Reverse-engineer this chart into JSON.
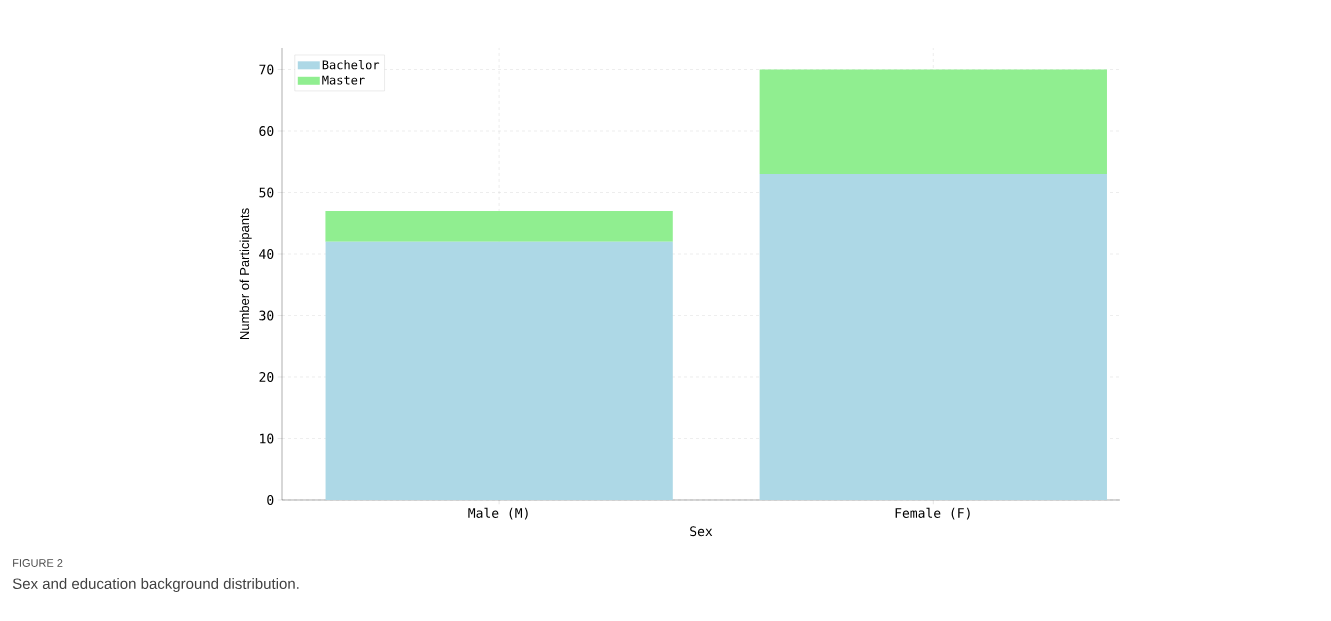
{
  "chart_data": {
    "type": "bar",
    "stacked": true,
    "xlabel": "Sex",
    "ylabel": "Number of Participants",
    "categories": [
      "Male (M)",
      "Female (F)"
    ],
    "series": [
      {
        "name": "Bachelor",
        "color": "#add8e6",
        "values": [
          42,
          53
        ]
      },
      {
        "name": "Master",
        "color": "#90ee90",
        "values": [
          5,
          17
        ]
      }
    ],
    "ylim": [
      0,
      73.5
    ],
    "yticks": [
      0,
      10,
      20,
      30,
      40,
      50,
      60,
      70
    ],
    "grid": true,
    "legend": "top left",
    "annotations": [
      "FIGURE 2",
      "Sex and education background distribution."
    ]
  }
}
